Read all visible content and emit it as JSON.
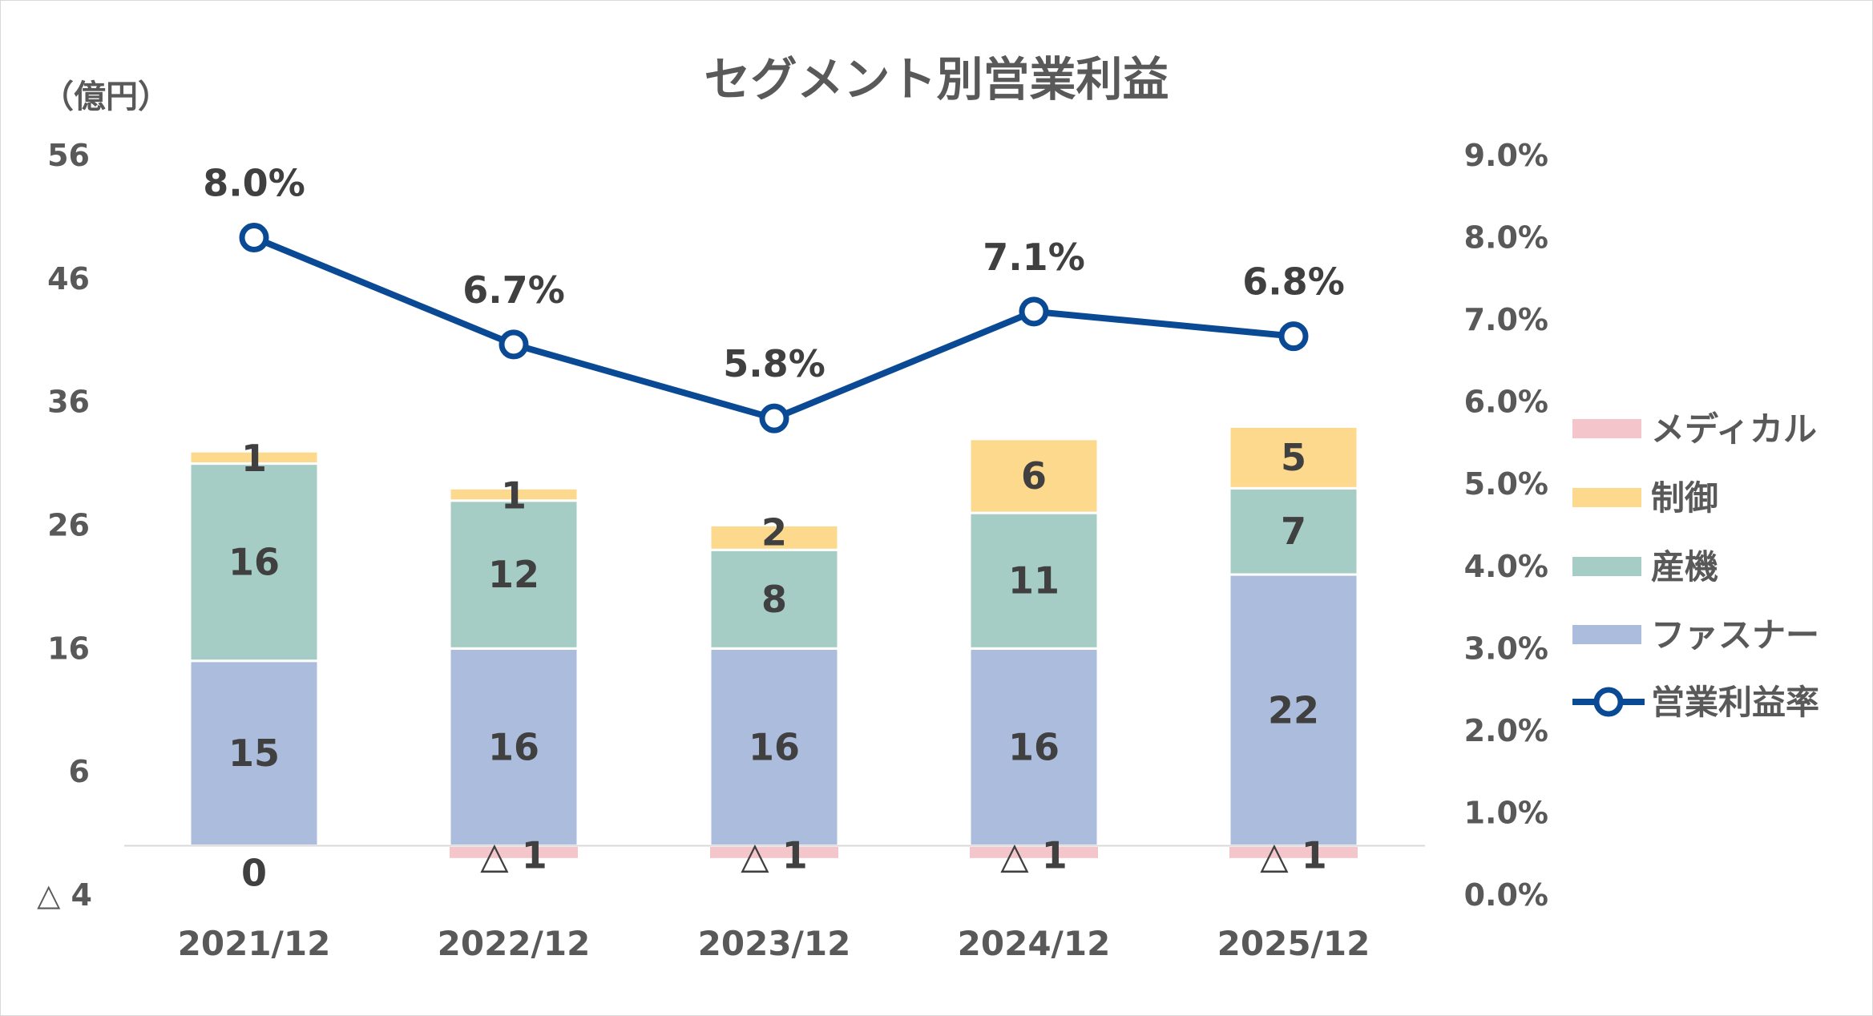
{
  "title": "セグメント別営業利益",
  "unit_label": "（億円）",
  "colors": {
    "medical": "#f4c6cb",
    "control": "#fcd98d",
    "industrial": "#a5cdc6",
    "fastener": "#abbcdc",
    "rate_line": "#0a4a94",
    "axis_text": "#595959"
  },
  "chart_data": {
    "type": "bar",
    "stacked": true,
    "categories": [
      "2021/12",
      "2022/12",
      "2023/12",
      "2024/12",
      "2025/12"
    ],
    "series": [
      {
        "name": "メディカル",
        "values": [
          0,
          -1,
          -1,
          -1,
          -1
        ],
        "labels": [
          "0",
          "△ 1",
          "△ 1",
          "△ 1",
          "△ 1"
        ]
      },
      {
        "name": "ファスナー",
        "values": [
          15,
          16,
          16,
          16,
          22
        ],
        "labels": [
          "15",
          "16",
          "16",
          "16",
          "22"
        ]
      },
      {
        "name": "産機",
        "values": [
          16,
          12,
          8,
          11,
          7
        ],
        "labels": [
          "16",
          "12",
          "8",
          "11",
          "7"
        ]
      },
      {
        "name": "制御",
        "values": [
          1,
          1,
          2,
          6,
          5
        ],
        "labels": [
          "1",
          "1",
          "2",
          "6",
          "5"
        ]
      }
    ],
    "line_series": {
      "name": "営業利益率",
      "values": [
        8.0,
        6.7,
        5.8,
        7.1,
        6.8
      ],
      "labels": [
        "8.0%",
        "6.7%",
        "5.8%",
        "7.1%",
        "6.8%"
      ]
    },
    "y_left": {
      "min": -4,
      "max": 56,
      "ticks": [
        56,
        46,
        36,
        26,
        16,
        6,
        -4
      ],
      "tick_labels": [
        "56",
        "46",
        "36",
        "26",
        "16",
        "6",
        "△ 4"
      ]
    },
    "y_right": {
      "min": 0,
      "max": 9,
      "ticks": [
        9,
        8,
        7,
        6,
        5,
        4,
        3,
        2,
        1,
        0
      ],
      "tick_labels": [
        "9.0%",
        "8.0%",
        "7.0%",
        "6.0%",
        "5.0%",
        "4.0%",
        "3.0%",
        "2.0%",
        "1.0%",
        "0.0%"
      ]
    },
    "legend": {
      "placement": "right",
      "entries": [
        "メディカル",
        "制御",
        "産機",
        "ファスナー",
        "営業利益率"
      ]
    },
    "grid": false
  }
}
